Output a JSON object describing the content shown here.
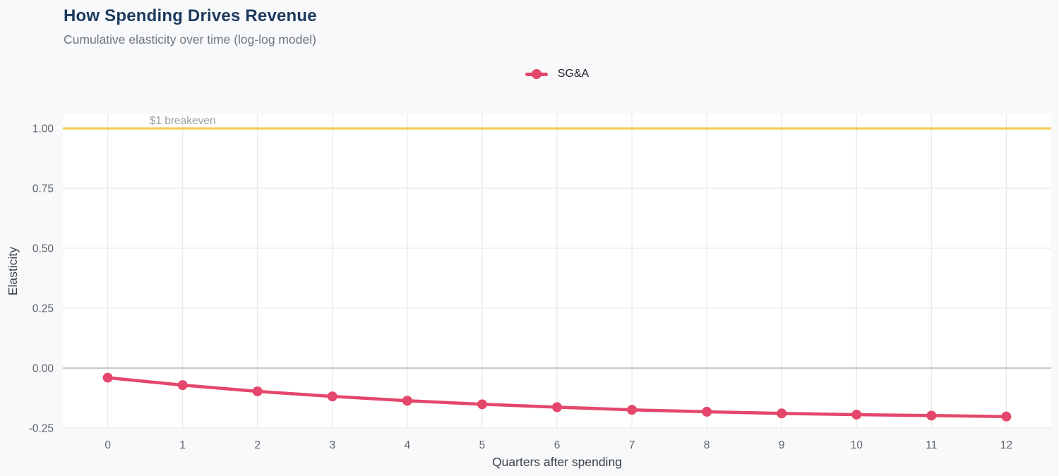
{
  "page": {
    "background": "#f8f9fa"
  },
  "header": {
    "title": "How Spending Drives Revenue",
    "subtitle": "Cumulative elasticity over time (log-log model)",
    "title_color": "#1d3a5e",
    "subtitle_color": "#70767e"
  },
  "legend": {
    "position": "top-center",
    "items": [
      {
        "label": "SG&A",
        "color": "#e4476b",
        "marker": "line-dot"
      }
    ]
  },
  "chart_data": {
    "type": "line",
    "title": "How Spending Drives Revenue",
    "subtitle": "Cumulative elasticity over time (log-log model)",
    "xlabel": "Quarters after spending",
    "ylabel": "Elasticity",
    "x": [
      0,
      1,
      2,
      3,
      4,
      5,
      6,
      7,
      8,
      9,
      10,
      11,
      12
    ],
    "x_tick_labels": [
      "0",
      "1",
      "2",
      "3",
      "4",
      "5",
      "6",
      "7",
      "8",
      "9",
      "10",
      "11",
      "12"
    ],
    "series": [
      {
        "name": "SG&A",
        "color": "#e4476b",
        "values": [
          -0.04,
          -0.071,
          -0.097,
          -0.118,
          -0.136,
          -0.151,
          -0.163,
          -0.174,
          -0.182,
          -0.189,
          -0.194,
          -0.198,
          -0.202
        ]
      }
    ],
    "y_ticks": [
      -0.25,
      0.0,
      0.25,
      0.5,
      0.75,
      1.0
    ],
    "y_tick_labels": [
      "-0.25",
      "0.00",
      "0.25",
      "0.50",
      "0.75",
      "1.00"
    ],
    "xlim": [
      -0.6,
      12.6
    ],
    "ylim": [
      -0.25,
      1.059
    ],
    "grid": true,
    "zero_line_value": 0,
    "reference_line": {
      "value": 1.0,
      "label": "$1 breakeven",
      "color": "#f2cb53",
      "label_color": "#9ba1a8"
    },
    "legend_position": "top-center",
    "colors": {
      "panel": "#ffffff",
      "grid": "#e9eaec",
      "zero_line": "#c7c9cb",
      "tick_label": "#5f6469",
      "axis_title": "#3a3f45"
    }
  }
}
